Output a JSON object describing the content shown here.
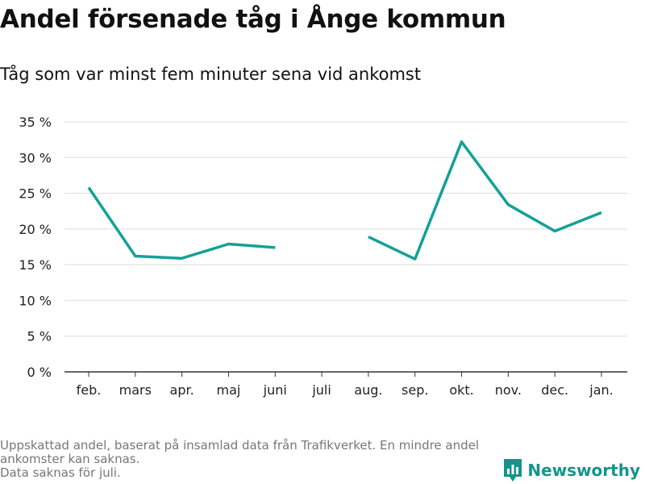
{
  "title": "Andel försenade tåg i Ånge kommun",
  "subtitle": "Tåg som var minst fem minuter sena vid ankomst",
  "notes": [
    "Uppskattad andel, baserat på insamlad data från Trafikverket. En mindre andel",
    "ankomster kan saknas.",
    "Data saknas för juli."
  ],
  "brand": {
    "name": "Newsworthy",
    "icon": "newsworthy-logo-icon",
    "color": "#13958c"
  },
  "chart_data": {
    "type": "line",
    "title": "Andel försenade tåg i Ånge kommun",
    "subtitle": "Tåg som var minst fem minuter sena vid ankomst",
    "xlabel": "",
    "ylabel": "",
    "categories": [
      "feb.",
      "mars",
      "apr.",
      "maj",
      "juni",
      "juli",
      "aug.",
      "sep.",
      "okt.",
      "nov.",
      "dec.",
      "jan."
    ],
    "series": [
      {
        "values": [
          25.8,
          16.2,
          15.9,
          17.9,
          17.4,
          null,
          18.9,
          15.8,
          32.2,
          23.4,
          19.7,
          22.3
        ]
      }
    ],
    "yticks": [
      0,
      5,
      10,
      15,
      20,
      25,
      30,
      35
    ],
    "ytick_labels": [
      "0 %",
      "5 %",
      "10 %",
      "15 %",
      "20 %",
      "25 %",
      "30 %",
      "35 %"
    ],
    "ylim": [
      0,
      35
    ],
    "grid": true,
    "colors": {
      "line": "#13a198",
      "grid": "#dddddd",
      "axis": "#333333"
    }
  }
}
